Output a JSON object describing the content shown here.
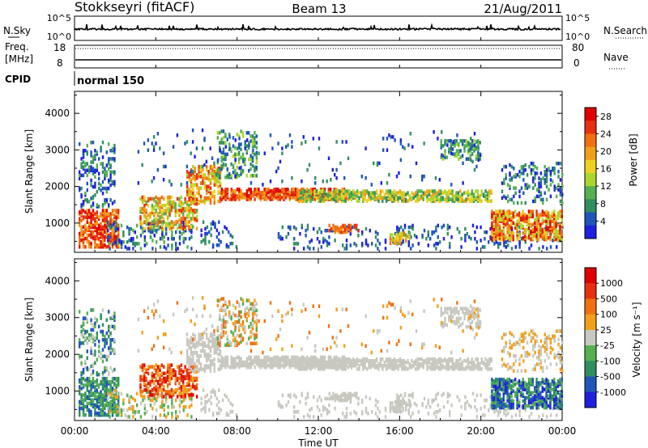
{
  "chart_data": {
    "type": "heatmap",
    "radar": "Stokkseyri (fitACF)",
    "beam": "Beam 13",
    "date": "21/Aug/2011",
    "xlabel": "Time UT",
    "x_ticks": [
      "00:00",
      "04:00",
      "08:00",
      "12:00",
      "16:00",
      "20:00",
      "00:00"
    ],
    "x_range_hours": [
      0,
      24
    ],
    "noise_panel": {
      "left_label": "N.Sky",
      "right_label": "N.Search",
      "left_ticks": [
        "10^5",
        "10^0"
      ],
      "right_ticks": [
        "10^5",
        "10^0"
      ]
    },
    "freq_panel": {
      "left_label_1": "Freq.",
      "left_label_2": "[MHz]",
      "right_label": "Nave",
      "left_ticks": [
        "18",
        "8"
      ],
      "right_ticks": [
        "80",
        "0"
      ]
    },
    "cpid": {
      "label": "CPID",
      "value": "normal 150"
    },
    "panels": [
      {
        "name": "power",
        "ylabel": "Slant Range [km]",
        "y_ticks": [
          "1000",
          "2000",
          "3000",
          "4000"
        ],
        "ylim": [
          200,
          4600
        ],
        "colorbar_label": "Power [dB]",
        "colorbar_ticks": [
          "4",
          "8",
          "12",
          "16",
          "20",
          "24",
          "28"
        ],
        "colorbar_range": [
          0,
          30
        ],
        "colors": [
          "#1f1fdf",
          "#1f56b8",
          "#2f8f5f",
          "#55b050",
          "#a8d82e",
          "#f0d020",
          "#f0a018",
          "#f07010",
          "#e83010",
          "#e00000"
        ]
      },
      {
        "name": "velocity",
        "ylabel": "Slant Range [km]",
        "y_ticks": [
          "1000",
          "2000",
          "3000",
          "4000"
        ],
        "ylim": [
          200,
          4600
        ],
        "colorbar_label": "Velocity [m s⁻¹]",
        "colorbar_ticks": [
          "1000",
          "500",
          "100",
          "25",
          "-25",
          "-100",
          "-500",
          "-1000"
        ],
        "colors": [
          "#1f1fdf",
          "#1f56b8",
          "#2f8f5f",
          "#55b050",
          "#c8c8c0",
          "#f0a018",
          "#f07010",
          "#e83010",
          "#e00000"
        ]
      }
    ]
  }
}
